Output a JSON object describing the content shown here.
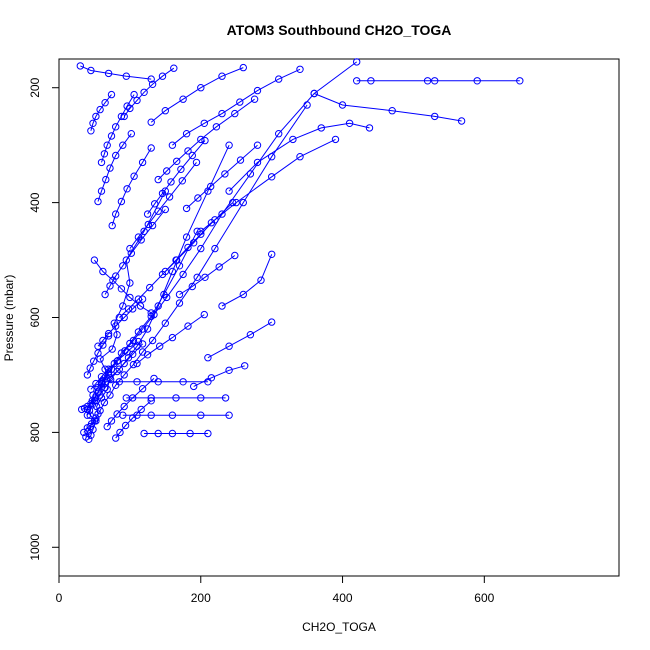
{
  "chart_data": {
    "type": "line",
    "title": "ATOM3 Southbound CH2O_TOGA",
    "xlabel": "CH2O_TOGA",
    "ylabel": "Pressure (mbar)",
    "xlim": [
      0,
      790
    ],
    "ylim": [
      1050,
      150
    ],
    "x_ticks": [
      0,
      200,
      400,
      600
    ],
    "y_ticks": [
      200,
      400,
      600,
      800,
      1000
    ],
    "series_color": "#0000ff",
    "marker": "open-circle",
    "legend": "none",
    "grid": false,
    "series": [
      {
        "x": [
          42,
          45,
          48,
          52,
          44,
          40,
          47,
          55,
          60,
          70,
          65,
          58,
          75,
          82,
          78,
          90,
          100,
          95,
          120,
          150
        ],
        "y": [
          812,
          805,
          795,
          780,
          770,
          760,
          745,
          730,
          715,
          700,
          690,
          672,
          655,
          630,
          610,
          580,
          540,
          500,
          450,
          380
        ]
      },
      {
        "x": [
          38,
          41,
          44,
          50,
          55,
          53,
          60,
          68,
          72,
          85,
          98,
          110,
          125,
          140,
          160,
          180,
          210,
          240
        ],
        "y": [
          808,
          798,
          790,
          780,
          768,
          755,
          740,
          725,
          705,
          690,
          670,
          650,
          620,
          580,
          520,
          460,
          380,
          300
        ]
      },
      {
        "x": [
          35,
          40,
          46,
          52,
          58,
          64,
          72,
          80,
          92,
          105,
          118,
          132,
          150,
          170,
          195,
          220,
          260,
          300,
          350
        ],
        "y": [
          800,
          792,
          785,
          775,
          762,
          748,
          735,
          718,
          700,
          682,
          660,
          640,
          610,
          575,
          530,
          480,
          400,
          320,
          230
        ]
      },
      {
        "x": [
          32,
          36,
          40,
          45,
          50,
          48,
          55,
          62,
          70,
          78,
          88,
          100,
          112,
          130,
          148,
          170,
          195
        ],
        "y": [
          760,
          758,
          755,
          750,
          745,
          735,
          722,
          710,
          695,
          680,
          662,
          645,
          625,
          598,
          560,
          510,
          450
        ]
      },
      {
        "x": [
          40,
          43,
          47,
          51,
          56,
          61,
          66,
          74,
          83,
          93,
          105,
          118,
          134,
          152,
          175,
          200,
          230,
          270,
          310,
          360,
          420
        ],
        "y": [
          770,
          762,
          752,
          740,
          728,
          716,
          703,
          690,
          675,
          658,
          640,
          620,
          595,
          565,
          525,
          480,
          420,
          350,
          280,
          210,
          155
        ]
      },
      {
        "x": [
          120,
          140,
          160,
          185,
          210
        ],
        "y": [
          802,
          802,
          802,
          802,
          802
        ]
      },
      {
        "x": [
          90,
          110,
          130,
          160,
          200,
          240
        ],
        "y": [
          770,
          770,
          770,
          770,
          770,
          770
        ]
      },
      {
        "x": [
          60,
          85,
          110,
          140,
          175,
          210
        ],
        "y": [
          712,
          712,
          712,
          712,
          712,
          712
        ]
      },
      {
        "x": [
          95,
          130,
          165,
          200,
          235
        ],
        "y": [
          740,
          740,
          740,
          740,
          740
        ]
      },
      {
        "x": [
          420,
          440,
          520,
          530,
          590,
          650
        ],
        "y": [
          188,
          188,
          188,
          188,
          188,
          188
        ]
      },
      {
        "x": [
          360,
          400,
          470,
          530,
          568
        ],
        "y": [
          210,
          230,
          240,
          250,
          258
        ]
      },
      {
        "x": [
          240,
          280,
          330,
          370,
          410,
          438
        ],
        "y": [
          380,
          330,
          290,
          270,
          262,
          270
        ]
      },
      {
        "x": [
          200,
          250,
          300,
          340,
          390
        ],
        "y": [
          450,
          400,
          355,
          320,
          290
        ]
      },
      {
        "x": [
          230,
          260,
          285,
          300
        ],
        "y": [
          580,
          560,
          535,
          490
        ]
      },
      {
        "x": [
          210,
          240,
          270,
          300
        ],
        "y": [
          670,
          650,
          630,
          608
        ]
      },
      {
        "x": [
          190,
          215,
          240,
          262
        ],
        "y": [
          720,
          705,
          692,
          684
        ]
      },
      {
        "x": [
          55,
          60,
          66,
          72,
          80,
          90,
          102
        ],
        "y": [
          398,
          380,
          360,
          340,
          318,
          300,
          280
        ]
      },
      {
        "x": [
          45,
          48,
          52,
          58,
          65,
          74
        ],
        "y": [
          275,
          262,
          250,
          238,
          226,
          212
        ]
      },
      {
        "x": [
          30,
          45,
          70,
          95,
          130
        ],
        "y": [
          162,
          170,
          175,
          180,
          185
        ]
      },
      {
        "x": [
          50,
          62,
          76,
          88,
          100,
          115,
          130
        ],
        "y": [
          500,
          520,
          535,
          550,
          565,
          580,
          592
        ]
      },
      {
        "x": [
          130,
          150,
          175,
          200,
          230,
          260
        ],
        "y": [
          260,
          240,
          220,
          200,
          180,
          165
        ]
      },
      {
        "x": [
          160,
          180,
          205,
          230,
          255,
          280,
          310,
          340
        ],
        "y": [
          300,
          280,
          262,
          245,
          225,
          205,
          185,
          168
        ]
      },
      {
        "x": [
          75,
          80,
          88,
          96,
          106,
          118,
          130
        ],
        "y": [
          440,
          420,
          398,
          376,
          354,
          330,
          305
        ]
      },
      {
        "x": [
          100,
          112,
          126,
          140,
          156,
          174,
          194
        ],
        "y": [
          480,
          460,
          438,
          415,
          390,
          362,
          330
        ]
      },
      {
        "x": [
          150,
          165,
          182,
          200,
          220,
          245
        ],
        "y": [
          520,
          500,
          478,
          455,
          430,
          400
        ]
      },
      {
        "x": [
          85,
          98,
          112,
          128,
          146,
          166,
          190,
          215
        ],
        "y": [
          600,
          585,
          568,
          548,
          525,
          500,
          470,
          435
        ]
      },
      {
        "x": [
          55,
          62,
          70,
          80,
          92,
          104,
          118
        ],
        "y": [
          650,
          640,
          628,
          615,
          600,
          585,
          568
        ]
      },
      {
        "x": [
          110,
          125,
          142,
          160,
          182,
          205
        ],
        "y": [
          680,
          665,
          650,
          635,
          615,
          595
        ]
      },
      {
        "x": [
          65,
          72,
          80,
          90,
          102,
          116,
          132,
          150
        ],
        "y": [
          560,
          545,
          528,
          510,
          488,
          465,
          440,
          412
        ]
      },
      {
        "x": [
          140,
          152,
          166,
          182,
          200,
          222,
          248,
          276
        ],
        "y": [
          360,
          345,
          328,
          310,
          290,
          268,
          245,
          220
        ]
      },
      {
        "x": [
          40,
          44,
          49,
          55,
          62,
          70
        ],
        "y": [
          700,
          688,
          676,
          662,
          648,
          632
        ]
      },
      {
        "x": [
          45,
          52,
          60,
          70,
          82,
          96,
          112
        ],
        "y": [
          725,
          715,
          703,
          690,
          676,
          660,
          642
        ]
      },
      {
        "x": [
          52,
          58,
          65,
          73,
          82,
          92,
          104,
          118
        ],
        "y": [
          745,
          735,
          722,
          708,
          694,
          680,
          664,
          646
        ]
      },
      {
        "x": [
          68,
          74,
          82,
          92,
          104,
          118,
          134
        ],
        "y": [
          790,
          780,
          768,
          755,
          740,
          724,
          706
        ]
      },
      {
        "x": [
          80,
          86,
          94,
          104,
          116,
          130
        ],
        "y": [
          810,
          800,
          788,
          775,
          760,
          745
        ]
      },
      {
        "x": [
          170,
          188,
          206,
          226,
          248
        ],
        "y": [
          560,
          546,
          530,
          512,
          492
        ]
      },
      {
        "x": [
          125,
          135,
          146,
          158,
          172,
          188,
          206
        ],
        "y": [
          420,
          402,
          384,
          364,
          342,
          318,
          292
        ]
      },
      {
        "x": [
          60,
          64,
          68,
          74,
          80,
          88,
          96,
          106
        ],
        "y": [
          330,
          315,
          300,
          284,
          268,
          250,
          232,
          212
        ]
      },
      {
        "x": [
          92,
          100,
          110,
          120,
          132,
          146,
          162
        ],
        "y": [
          250,
          236,
          222,
          208,
          194,
          180,
          166
        ]
      },
      {
        "x": [
          180,
          196,
          214,
          234,
          256,
          280
        ],
        "y": [
          410,
          392,
          372,
          350,
          326,
          300
        ]
      }
    ]
  }
}
